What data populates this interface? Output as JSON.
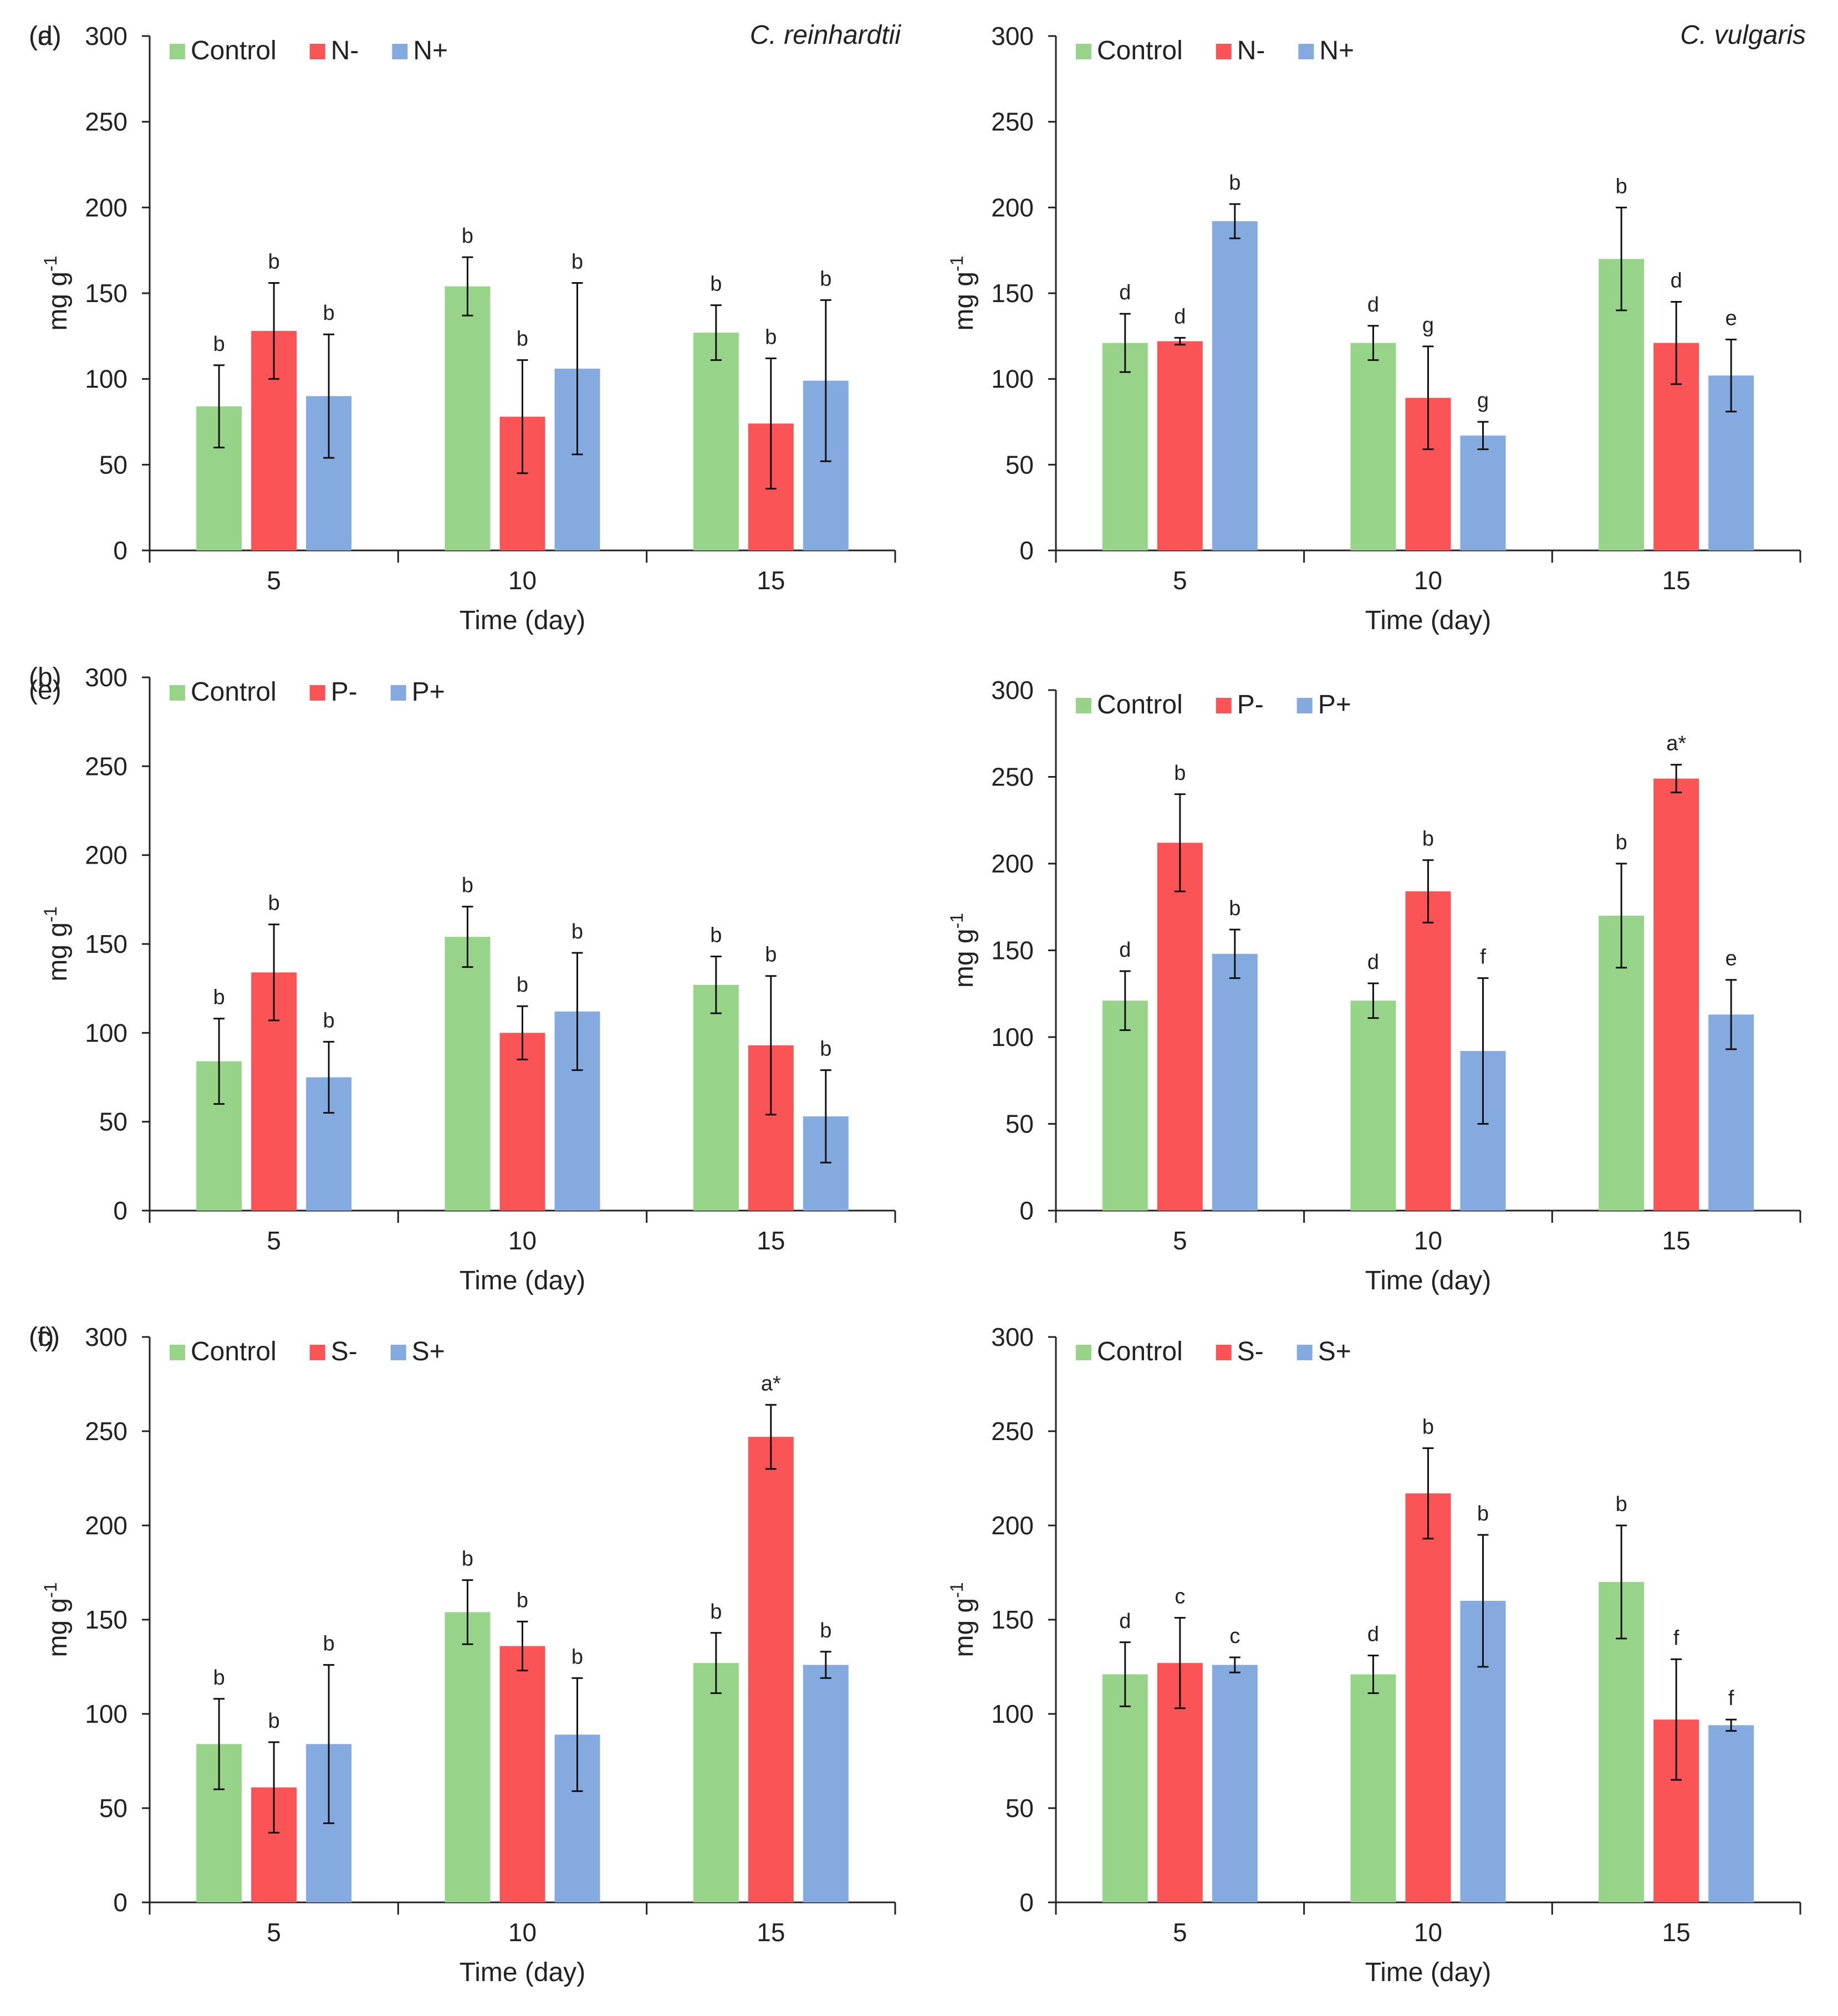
{
  "colors": {
    "control": "#97d48a",
    "minus": "#fa5457",
    "plus": "#85aadf",
    "axis": "#222222"
  },
  "chart_data": [
    {
      "id": "a",
      "panel_label": "(a)",
      "type": "bar",
      "title": "C. reinhardtii",
      "xlabel": "Time (day)",
      "ylabel": "mg g-1",
      "ylim": [
        0,
        300
      ],
      "yticks": [
        "0",
        "50",
        "100",
        "150",
        "200",
        "250",
        "300"
      ],
      "categories": [
        "5",
        "10",
        "15"
      ],
      "legend_position": "top-left",
      "grid": false,
      "series": [
        {
          "name": "Control",
          "color": "control",
          "values": [
            84,
            154,
            127
          ],
          "errors": [
            24,
            17,
            16
          ],
          "labels": [
            "b",
            "b",
            "b"
          ]
        },
        {
          "name": "N-",
          "color": "minus",
          "values": [
            128,
            78,
            74
          ],
          "errors": [
            28,
            33,
            38
          ],
          "labels": [
            "b",
            "b",
            "b"
          ]
        },
        {
          "name": "N+",
          "color": "plus",
          "values": [
            90,
            106,
            99
          ],
          "errors": [
            36,
            50,
            47
          ],
          "labels": [
            "b",
            "b",
            "b"
          ]
        }
      ]
    },
    {
      "id": "b",
      "panel_label": "(b)",
      "type": "bar",
      "title": "",
      "xlabel": "Time (day)",
      "ylabel": "mg g-1",
      "ylim": [
        0,
        300
      ],
      "yticks": [
        "0",
        "50",
        "100",
        "150",
        "200",
        "250",
        "300"
      ],
      "categories": [
        "5",
        "10",
        "15"
      ],
      "legend_position": "top-left",
      "grid": false,
      "series": [
        {
          "name": "Control",
          "color": "control",
          "values": [
            84,
            154,
            127
          ],
          "errors": [
            24,
            17,
            16
          ],
          "labels": [
            "b",
            "b",
            "b"
          ]
        },
        {
          "name": "P-",
          "color": "minus",
          "values": [
            134,
            100,
            93
          ],
          "errors": [
            27,
            15,
            39
          ],
          "labels": [
            "b",
            "b",
            "b"
          ]
        },
        {
          "name": "P+",
          "color": "plus",
          "values": [
            75,
            112,
            53
          ],
          "errors": [
            20,
            33,
            26
          ],
          "labels": [
            "b",
            "b",
            "b"
          ]
        }
      ]
    },
    {
      "id": "c",
      "panel_label": "(c)",
      "type": "bar",
      "title": "",
      "xlabel": "Time (day)",
      "ylabel": "mg g-1",
      "ylim": [
        0,
        300
      ],
      "yticks": [
        "0",
        "50",
        "100",
        "150",
        "200",
        "250",
        "300"
      ],
      "categories": [
        "5",
        "10",
        "15"
      ],
      "legend_position": "top-left",
      "grid": false,
      "series": [
        {
          "name": "Control",
          "color": "control",
          "values": [
            84,
            154,
            127
          ],
          "errors": [
            24,
            17,
            16
          ],
          "labels": [
            "b",
            "b",
            "b"
          ]
        },
        {
          "name": "S-",
          "color": "minus",
          "values": [
            61,
            136,
            247
          ],
          "errors": [
            24,
            13,
            17
          ],
          "labels": [
            "b",
            "b",
            "a*"
          ]
        },
        {
          "name": "S+",
          "color": "plus",
          "values": [
            84,
            89,
            126
          ],
          "errors": [
            42,
            30,
            7
          ],
          "labels": [
            "b",
            "b",
            "b"
          ]
        }
      ]
    },
    {
      "id": "d",
      "panel_label": "(d)",
      "type": "bar",
      "title": "C. vulgaris",
      "xlabel": "Time (day)",
      "ylabel": "mg g-1",
      "ylim": [
        0,
        300
      ],
      "yticks": [
        "0",
        "50",
        "100",
        "150",
        "200",
        "250",
        "300"
      ],
      "categories": [
        "5",
        "10",
        "15"
      ],
      "legend_position": "top-left",
      "grid": false,
      "series": [
        {
          "name": "Control",
          "color": "control",
          "values": [
            121,
            121,
            170
          ],
          "errors": [
            17,
            10,
            30
          ],
          "labels": [
            "d",
            "d",
            "b"
          ]
        },
        {
          "name": "N-",
          "color": "minus",
          "values": [
            122,
            89,
            121
          ],
          "errors": [
            2,
            30,
            24
          ],
          "labels": [
            "d",
            "g",
            "d"
          ]
        },
        {
          "name": "N+",
          "color": "plus",
          "values": [
            192,
            67,
            102
          ],
          "errors": [
            10,
            8,
            21
          ],
          "labels": [
            "b",
            "g",
            "e"
          ]
        }
      ]
    },
    {
      "id": "e",
      "panel_label": "(e)",
      "type": "bar",
      "title": "",
      "xlabel": "Time (day)",
      "ylabel": "mg g-1",
      "ylim": [
        0,
        300
      ],
      "yticks": [
        "0",
        "50",
        "100",
        "150",
        "200",
        "250",
        "300"
      ],
      "categories": [
        "5",
        "10",
        "15"
      ],
      "legend_position": "top-left",
      "grid": false,
      "series": [
        {
          "name": "Control",
          "color": "control",
          "values": [
            121,
            121,
            170
          ],
          "errors": [
            17,
            10,
            30
          ],
          "labels": [
            "d",
            "d",
            "b"
          ]
        },
        {
          "name": "P-",
          "color": "minus",
          "values": [
            212,
            184,
            249
          ],
          "errors": [
            28,
            18,
            8
          ],
          "labels": [
            "b",
            "b",
            "a*"
          ]
        },
        {
          "name": "P+",
          "color": "plus",
          "values": [
            148,
            92,
            113
          ],
          "errors": [
            14,
            42,
            20
          ],
          "labels": [
            "b",
            "f",
            "e"
          ]
        }
      ]
    },
    {
      "id": "f",
      "panel_label": "(f)",
      "type": "bar",
      "title": "",
      "xlabel": "Time (day)",
      "ylabel": "mg g-1",
      "ylim": [
        0,
        300
      ],
      "yticks": [
        "0",
        "50",
        "100",
        "150",
        "200",
        "250",
        "300"
      ],
      "categories": [
        "5",
        "10",
        "15"
      ],
      "legend_position": "top-left",
      "grid": false,
      "series": [
        {
          "name": "Control",
          "color": "control",
          "values": [
            121,
            121,
            170
          ],
          "errors": [
            17,
            10,
            30
          ],
          "labels": [
            "d",
            "d",
            "b"
          ]
        },
        {
          "name": "S-",
          "color": "minus",
          "values": [
            127,
            217,
            97
          ],
          "errors": [
            24,
            24,
            32
          ],
          "labels": [
            "c",
            "b",
            "f"
          ]
        },
        {
          "name": "S+",
          "color": "plus",
          "values": [
            126,
            160,
            94
          ],
          "errors": [
            4,
            35,
            3
          ],
          "labels": [
            "c",
            "b",
            "f"
          ]
        }
      ]
    }
  ]
}
